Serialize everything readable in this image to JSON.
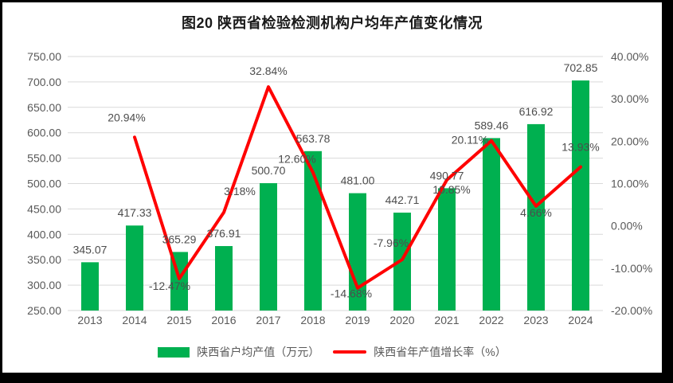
{
  "title": "图20  陕西省检验检测机构户均年产值变化情况",
  "frame_color": "#000000",
  "surface_color": "#ffffff",
  "legend": {
    "bar_label": "陕西省户均产值（万元）",
    "line_label": "陕西省年产值增长率（%）"
  },
  "chart_data": {
    "type": "bar",
    "subtype": "bar+line combo, dual axis",
    "title": "图20  陕西省检验检测机构户均年产值变化情况",
    "categories": [
      "2013",
      "2014",
      "2015",
      "2016",
      "2017",
      "2018",
      "2019",
      "2020",
      "2021",
      "2022",
      "2023",
      "2024"
    ],
    "series": [
      {
        "name": "陕西省户均产值（万元）",
        "type": "bar",
        "axis": "left",
        "color": "#00B050",
        "values": [
          345.07,
          417.33,
          365.29,
          376.91,
          500.7,
          563.78,
          481.0,
          442.71,
          490.77,
          589.46,
          616.92,
          702.85
        ],
        "labels": [
          "345.07",
          "417.33",
          "365.29",
          "376.91",
          "500.70",
          "563.78",
          "481.00",
          "442.71",
          "490.77",
          "589.46",
          "616.92",
          "702.85"
        ]
      },
      {
        "name": "陕西省年产值增长率（%）",
        "type": "line",
        "axis": "right",
        "color": "#FF0000",
        "values": [
          null,
          20.94,
          -12.47,
          3.18,
          32.84,
          12.6,
          -14.68,
          -7.96,
          10.85,
          20.11,
          4.66,
          13.93
        ],
        "labels": [
          null,
          "20.94%",
          "-12.47%",
          "3.18%",
          "32.84%",
          "12.60%",
          "-14.68%",
          "-7.96%",
          "10.85%",
          "20.11%",
          "4.66%",
          "13.93%"
        ]
      }
    ],
    "left_axis": {
      "min": 250,
      "max": 750,
      "step": 50,
      "ticks": [
        "750.00",
        "700.00",
        "650.00",
        "600.00",
        "550.00",
        "500.00",
        "450.00",
        "400.00",
        "350.00",
        "300.00",
        "250.00"
      ]
    },
    "right_axis": {
      "min": -20,
      "max": 40,
      "step": 10,
      "ticks": [
        "40.00%",
        "30.00%",
        "20.00%",
        "10.00%",
        "0.00%",
        "-10.00%",
        "-20.00%"
      ]
    },
    "grid": true,
    "gridline_color": "#D9D9D9",
    "tick_label_color": "#595959",
    "data_label_color": "#4d4d4d",
    "legend_position": "bottom"
  }
}
